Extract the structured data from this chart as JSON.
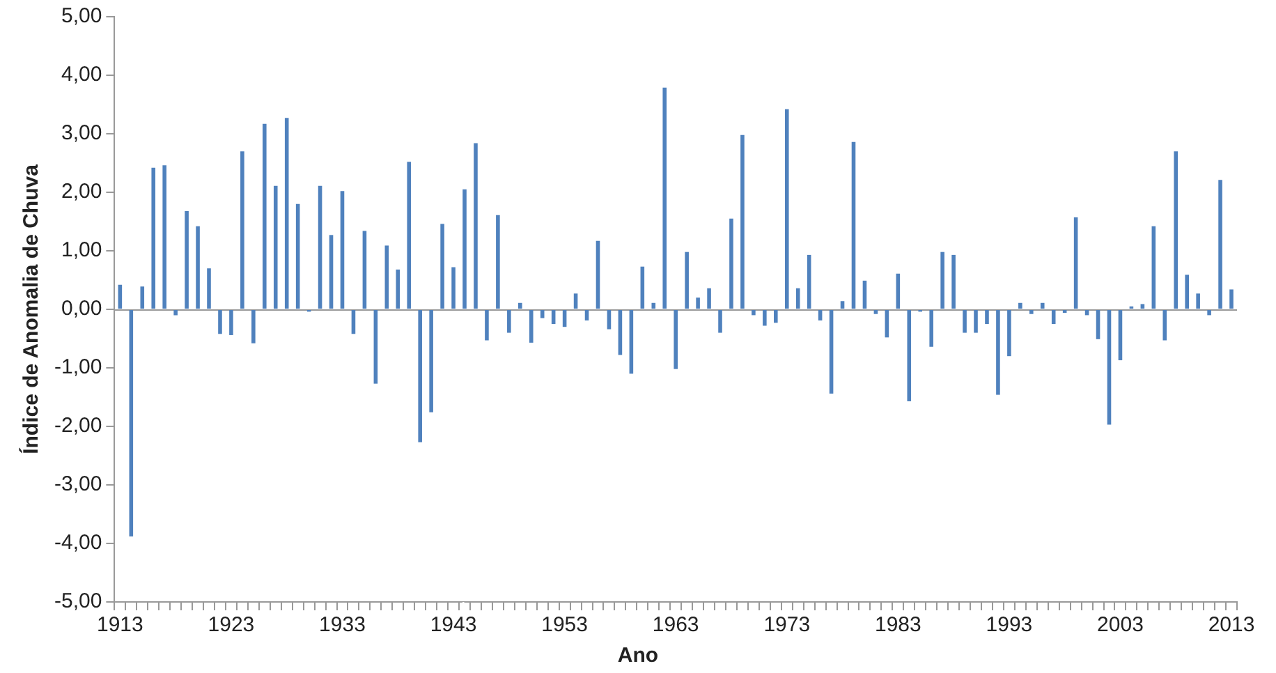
{
  "chart_data": {
    "type": "bar",
    "xlabel": "Ano",
    "ylabel": "Índice de Anomalia de Chuva",
    "categories": [
      "1913",
      null,
      null,
      null,
      null,
      null,
      null,
      null,
      null,
      null,
      "1923",
      null,
      null,
      null,
      null,
      null,
      null,
      null,
      null,
      null,
      "1933",
      null,
      null,
      null,
      null,
      null,
      null,
      null,
      null,
      null,
      "1943",
      null,
      null,
      null,
      null,
      null,
      null,
      null,
      null,
      null,
      "1953",
      null,
      null,
      null,
      null,
      null,
      null,
      null,
      null,
      null,
      "1963",
      null,
      null,
      null,
      null,
      null,
      null,
      null,
      null,
      null,
      "1973",
      null,
      null,
      null,
      null,
      null,
      null,
      null,
      null,
      null,
      "1983",
      null,
      null,
      null,
      null,
      null,
      null,
      null,
      null,
      null,
      "1993",
      null,
      null,
      null,
      null,
      null,
      null,
      null,
      null,
      null,
      "2003",
      null,
      null,
      null,
      null,
      null,
      null,
      null,
      null,
      null,
      "2013"
    ],
    "values": [
      0.42,
      -3.88,
      0.39,
      2.42,
      2.46,
      -0.1,
      1.68,
      1.42,
      0.7,
      -0.42,
      -0.44,
      2.7,
      -0.58,
      3.17,
      2.11,
      3.27,
      1.8,
      -0.04,
      2.11,
      1.27,
      2.02,
      -0.42,
      1.34,
      -1.27,
      1.09,
      0.68,
      2.52,
      -2.27,
      -1.76,
      1.46,
      0.72,
      2.05,
      2.84,
      -0.53,
      1.61,
      -0.4,
      0.11,
      -0.57,
      -0.15,
      -0.25,
      -0.3,
      0.27,
      -0.19,
      1.17,
      -0.34,
      -0.78,
      -1.1,
      0.73,
      0.11,
      3.79,
      -1.02,
      0.98,
      0.2,
      0.36,
      -0.4,
      1.55,
      2.98,
      -0.1,
      -0.28,
      -0.23,
      3.42,
      0.36,
      0.93,
      -0.19,
      -1.44,
      0.14,
      2.86,
      0.49,
      -0.08,
      -0.48,
      0.61,
      -1.57,
      -0.04,
      -0.64,
      0.98,
      0.93,
      -0.4,
      -0.4,
      -0.25,
      -1.46,
      -0.8,
      0.11,
      -0.08,
      0.11,
      -0.25,
      -0.06,
      1.57,
      -0.1,
      -0.51,
      -1.97,
      -0.87,
      0.05,
      0.09,
      1.42,
      -0.53,
      2.7,
      0.59,
      0.27,
      -0.1,
      2.21,
      0.34
    ],
    "color": "#4f81bd",
    "ylim": [
      -5,
      5
    ],
    "yticks": [
      {
        "value": -5,
        "label": "-5,00"
      },
      {
        "value": -4,
        "label": "-4,00"
      },
      {
        "value": -3,
        "label": "-3,00"
      },
      {
        "value": -2,
        "label": "-2,00"
      },
      {
        "value": -1,
        "label": "-1,00"
      },
      {
        "value": 0,
        "label": "0,00"
      },
      {
        "value": 1,
        "label": "1,00"
      },
      {
        "value": 2,
        "label": "2,00"
      },
      {
        "value": 3,
        "label": "3,00"
      },
      {
        "value": 4,
        "label": "4,00"
      },
      {
        "value": 5,
        "label": "5,00"
      }
    ],
    "ref_lines": [
      {
        "axis": "y",
        "value": 0,
        "color": "#999999"
      }
    ],
    "grid": false,
    "legend": false
  }
}
